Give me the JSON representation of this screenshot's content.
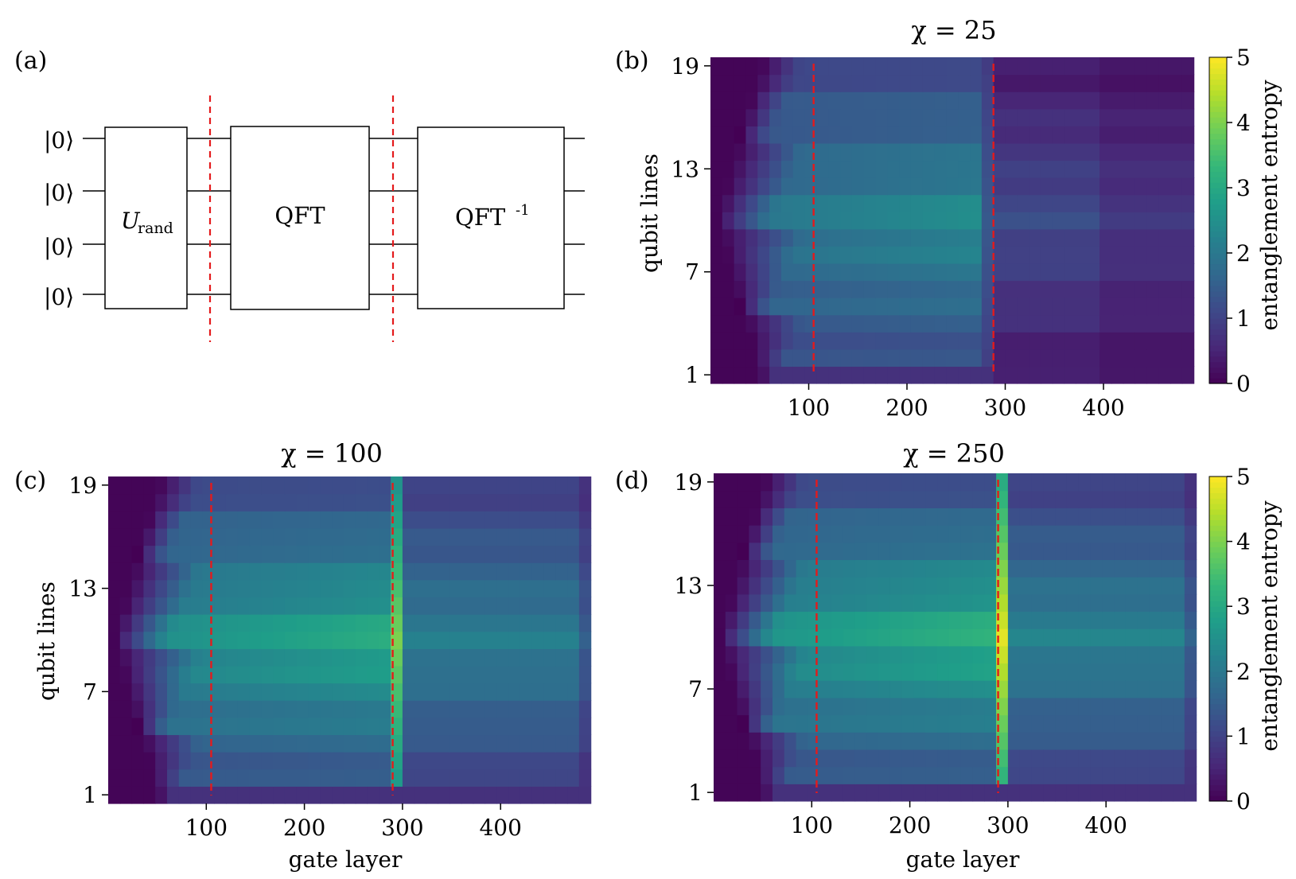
{
  "panel_labels": {
    "a": "(a)",
    "b": "(b)",
    "c": "(c)",
    "d": "(d)"
  },
  "circuit": {
    "inputs": [
      "|0⟩",
      "|0⟩",
      "|0⟩",
      "|0⟩"
    ],
    "gates": [
      "U",
      "rand",
      "QFT",
      "QFT",
      "-1"
    ],
    "gate_labels": {
      "u": "U",
      "u_sub": "rand",
      "qft": "QFT",
      "iqft": "QFT",
      "iqft_sup": "-1"
    }
  },
  "colors": {
    "cutoff_line": "#e41a1c",
    "colormap": "viridis",
    "viridis_stops": [
      "#440154",
      "#482878",
      "#3e4989",
      "#31688e",
      "#26828e",
      "#1f9e89",
      "#35b779",
      "#6ece58",
      "#b5de2b",
      "#fde725"
    ]
  },
  "colorbar": {
    "label": "entanglement entropy",
    "ticks": [
      "0",
      "1",
      "2",
      "3",
      "4",
      "5"
    ],
    "range": [
      0,
      5
    ]
  },
  "chart_data": [
    {
      "type": "heatmap",
      "panel": "(b)",
      "title": "χ = 25",
      "xlabel": "",
      "ylabel": "qubit lines",
      "xticks": [
        "100",
        "200",
        "300",
        "400"
      ],
      "yticks": [
        "1",
        "7",
        "13",
        "19"
      ],
      "xlim": [
        0,
        485
      ],
      "ylim": [
        0,
        19
      ],
      "cutoff_lines_x": [
        105,
        288
      ],
      "profile": {
        "plateau_mid": 2.0,
        "plateau_edge": 1.0,
        "peak": 1.4,
        "post_mid": 1.15,
        "post_edge": 0.25,
        "fade_at": 400
      }
    },
    {
      "type": "heatmap",
      "panel": "(c)",
      "title": "χ = 100",
      "xlabel": "gate layer",
      "ylabel": "qubit lines",
      "xticks": [
        "100",
        "200",
        "300",
        "400"
      ],
      "yticks": [
        "1",
        "7",
        "13",
        "19"
      ],
      "xlim": [
        0,
        485
      ],
      "ylim": [
        0,
        19
      ],
      "cutoff_lines_x": [
        105,
        290
      ],
      "profile": {
        "plateau_mid": 2.5,
        "plateau_edge": 1.0,
        "peak": 4.0,
        "post_mid": 2.1,
        "post_edge": 0.8,
        "fade_at": 485
      }
    },
    {
      "type": "heatmap",
      "panel": "(d)",
      "title": "χ = 250",
      "xlabel": "gate layer",
      "ylabel": "",
      "xticks": [
        "100",
        "200",
        "300",
        "400"
      ],
      "yticks": [
        "1",
        "7",
        "13",
        "19"
      ],
      "xlim": [
        0,
        485
      ],
      "ylim": [
        0,
        19
      ],
      "cutoff_lines_x": [
        105,
        290
      ],
      "profile": {
        "plateau_mid": 2.6,
        "plateau_edge": 1.0,
        "peak": 4.8,
        "post_mid": 2.2,
        "post_edge": 0.8,
        "fade_at": 485
      }
    }
  ]
}
